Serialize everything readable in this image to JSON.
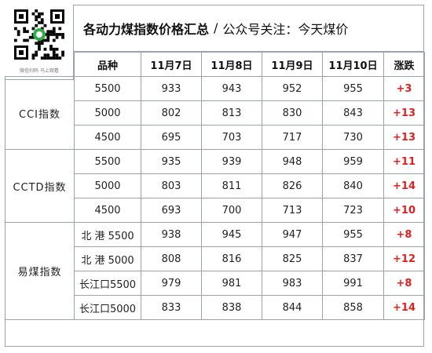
{
  "qr": {
    "caption": "微信扫码 马上观看"
  },
  "title": {
    "main": "各动力煤指数价格汇总",
    "separator": "/",
    "sub": "公众号关注：今天煤价"
  },
  "table": {
    "headers": [
      "品种",
      "11月7日",
      "11月8日",
      "11月9日",
      "11月10日",
      "涨跌"
    ],
    "groups": [
      {
        "name": "CCI指数",
        "rows": [
          {
            "product": "5500",
            "values": [
              "933",
              "943",
              "952",
              "955"
            ],
            "change": "+3"
          },
          {
            "product": "5000",
            "values": [
              "802",
              "813",
              "830",
              "843"
            ],
            "change": "+13"
          },
          {
            "product": "4500",
            "values": [
              "695",
              "703",
              "717",
              "730"
            ],
            "change": "+13"
          }
        ]
      },
      {
        "name": "CCTD指数",
        "rows": [
          {
            "product": "5500",
            "values": [
              "935",
              "939",
              "948",
              "959"
            ],
            "change": "+11"
          },
          {
            "product": "5000",
            "values": [
              "803",
              "811",
              "826",
              "840"
            ],
            "change": "+14"
          },
          {
            "product": "4500",
            "values": [
              "693",
              "700",
              "713",
              "723"
            ],
            "change": "+10"
          }
        ]
      },
      {
        "name": "易煤指数",
        "rows": [
          {
            "product": "北 港 5500",
            "values": [
              "938",
              "945",
              "947",
              "955"
            ],
            "change": "+8"
          },
          {
            "product": "北 港 5000",
            "values": [
              "808",
              "816",
              "825",
              "837"
            ],
            "change": "+12"
          },
          {
            "product": "长江口5500",
            "values": [
              "979",
              "981",
              "983",
              "991"
            ],
            "change": "+8"
          },
          {
            "product": "长江口5000",
            "values": [
              "833",
              "838",
              "844",
              "858"
            ],
            "change": "+14"
          }
        ]
      }
    ]
  },
  "colors": {
    "change": "#e02020",
    "border": "#9aa3ad"
  },
  "icons": {
    "qr": "qr-code-icon",
    "logo": "wechat-mini-logo-icon"
  }
}
